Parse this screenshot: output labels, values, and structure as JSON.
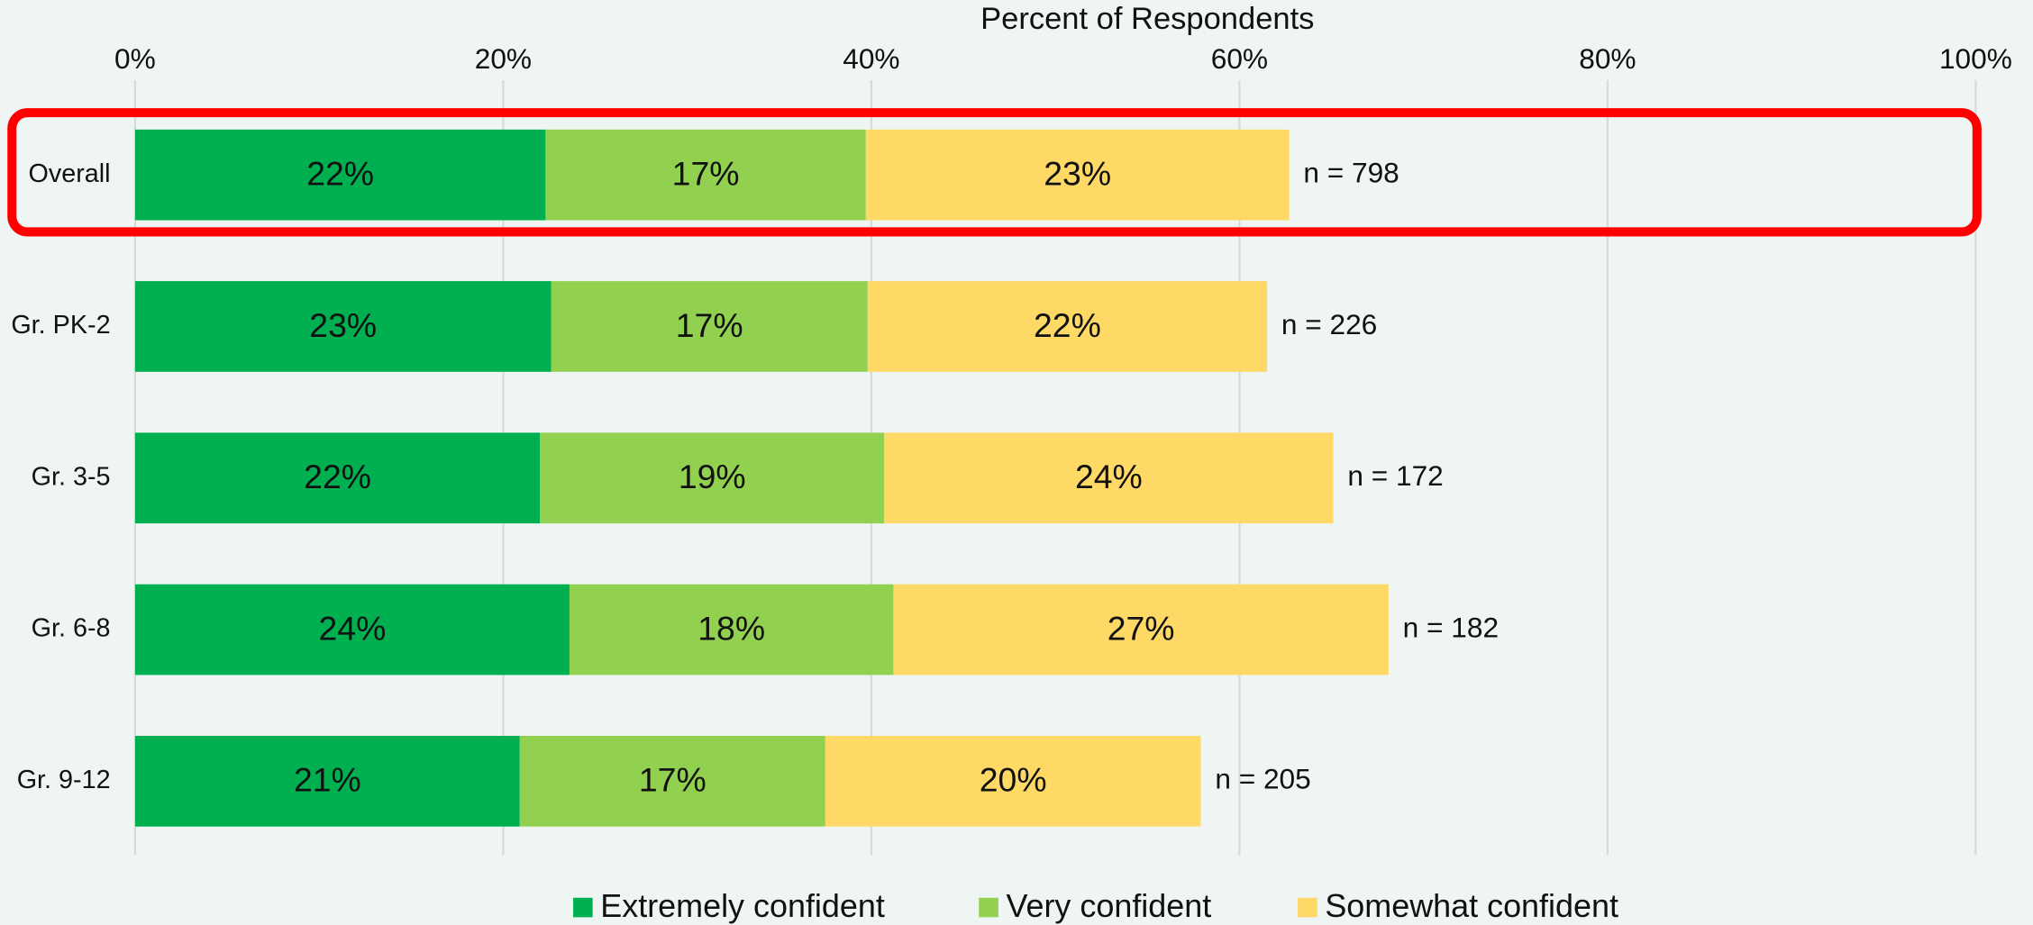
{
  "chart_data": {
    "type": "stacked-bar-horizontal",
    "xlabel": "Percent of Respondents",
    "categories": [
      "Overall",
      "Gr. PK-2",
      "Gr. 3-5",
      "Gr. 6-8",
      "Gr. 9-12"
    ],
    "series": [
      {
        "name": "Extremely confident",
        "color": "#00b050",
        "values": [
          22.3,
          22.6,
          22.0,
          23.6,
          20.9
        ],
        "value_labels": [
          "22%",
          "23%",
          "22%",
          "24%",
          "21%"
        ]
      },
      {
        "name": "Very confident",
        "color": "#92d050",
        "values": [
          17.4,
          17.2,
          18.7,
          17.6,
          16.6
        ],
        "value_labels": [
          "17%",
          "17%",
          "19%",
          "18%",
          "17%"
        ]
      },
      {
        "name": "Somewhat confident",
        "color": "#ffd966",
        "values": [
          23.0,
          21.7,
          24.4,
          26.9,
          20.4
        ],
        "value_labels": [
          "23%",
          "22%",
          "24%",
          "27%",
          "20%"
        ]
      }
    ],
    "n_labels": [
      "n = 798",
      "n = 226",
      "n = 172",
      "n = 182",
      "n = 205"
    ],
    "xlim": [
      0,
      100
    ],
    "xticks": [
      {
        "value": 0,
        "label": "0%"
      },
      {
        "value": 20,
        "label": "20%"
      },
      {
        "value": 40,
        "label": "40%"
      },
      {
        "value": 60,
        "label": "60%"
      },
      {
        "value": 80,
        "label": "80%"
      },
      {
        "value": 100,
        "label": "100%"
      }
    ],
    "grid": true,
    "legend": "bottom"
  }
}
